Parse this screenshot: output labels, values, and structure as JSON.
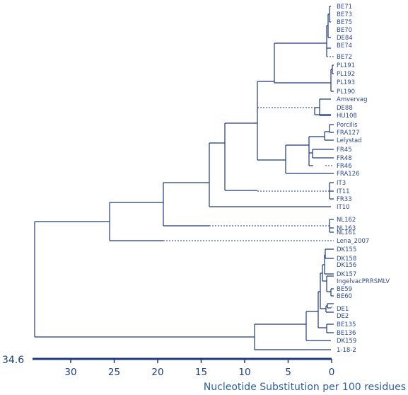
{
  "colors": {
    "line": "#1f3a7a",
    "leaf_text": "#2c4a8c",
    "axis_title": "#2c5fa8"
  },
  "axis": {
    "max_label": "34.6",
    "ticks": [
      30,
      25,
      20,
      15,
      10,
      5,
      0
    ],
    "title": "Nucleotide Substitution per 100 residues"
  },
  "leaves": [
    "BE71",
    "BE73",
    "BE75",
    "BE70",
    "DE84",
    "BE74",
    "BE72",
    "PL191",
    "PL192",
    "PL193",
    "PL190",
    "Amvervag",
    "DE88",
    "HU108",
    "Porcilis",
    "FRA127",
    "Lelystad",
    "FR45",
    "FR48",
    "FR46",
    "FRA126",
    "IT3",
    "IT11",
    "FR33",
    "IT10",
    "NL162",
    "NL163",
    "NL161",
    "Lena_2007",
    "DK155",
    "DK158",
    "DK156",
    "DK157",
    "IngelvacPRRSMLV",
    "BE59",
    "BE60",
    "DE1",
    "DE2",
    "BE135",
    "BE136",
    "DK159",
    "1-18-2"
  ]
}
